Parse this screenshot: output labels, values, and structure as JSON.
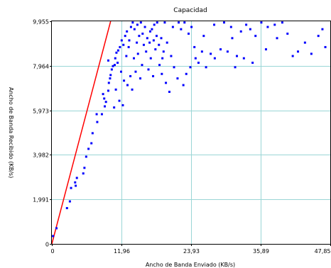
{
  "chart_data": {
    "type": "scatter",
    "title": "Capacidad",
    "xlabel": "Ancho de Banda Enviado (KB/s)",
    "ylabel": "Ancho de Banda Recibido (KB/s)",
    "xlim": [
      0,
      47.85
    ],
    "ylim": [
      0,
      9.955
    ],
    "x_ticks": [
      0,
      11.96,
      23.93,
      35.89,
      47.85
    ],
    "x_tick_labels": [
      "0",
      "11,96",
      "23,93",
      "35,89",
      "47,85"
    ],
    "y_ticks": [
      0,
      1.991,
      3.982,
      5.973,
      7.964,
      9.955
    ],
    "y_tick_labels": [
      "0",
      "1,991",
      "3,982",
      "5,973",
      "7,964",
      "9,955"
    ],
    "grid": true,
    "colors": {
      "points": "#0000ff",
      "line": "#ff0000",
      "grid": "#9ad6d6",
      "frame": "#000000"
    },
    "line": {
      "name": "",
      "x": [
        0,
        10.1
      ],
      "y": [
        0,
        9.955
      ]
    },
    "series": [
      {
        "name": "",
        "points": [
          [
            0.2,
            0.35
          ],
          [
            0.8,
            0.7
          ],
          [
            2.6,
            1.6
          ],
          [
            3.1,
            1.9
          ],
          [
            3.3,
            2.5
          ],
          [
            4.0,
            2.75
          ],
          [
            4.3,
            2.95
          ],
          [
            4.1,
            2.6
          ],
          [
            5.4,
            3.15
          ],
          [
            5.6,
            3.4
          ],
          [
            5.9,
            3.9
          ],
          [
            6.3,
            4.25
          ],
          [
            6.8,
            4.5
          ],
          [
            7.0,
            4.95
          ],
          [
            7.8,
            5.45
          ],
          [
            7.7,
            5.8
          ],
          [
            8.6,
            5.8
          ],
          [
            9.1,
            6.15
          ],
          [
            9.3,
            6.35
          ],
          [
            9.0,
            6.5
          ],
          [
            8.8,
            6.7
          ],
          [
            9.7,
            6.85
          ],
          [
            9.8,
            7.2
          ],
          [
            10.0,
            7.4
          ],
          [
            10.1,
            7.55
          ],
          [
            10.3,
            7.8
          ],
          [
            10.5,
            7.95
          ],
          [
            10.8,
            8.0
          ],
          [
            9.7,
            8.2
          ],
          [
            10.9,
            8.3
          ],
          [
            11.1,
            8.55
          ],
          [
            11.4,
            8.65
          ],
          [
            11.7,
            8.8
          ],
          [
            12.0,
            9.1
          ],
          [
            12.3,
            8.9
          ],
          [
            12.6,
            9.3
          ],
          [
            12.9,
            9.5
          ],
          [
            13.3,
            9.1
          ],
          [
            13.6,
            9.7
          ],
          [
            13.9,
            9.9
          ],
          [
            14.2,
            9.6
          ],
          [
            14.6,
            9.0
          ],
          [
            15.0,
            9.3
          ],
          [
            15.3,
            9.9
          ],
          [
            15.6,
            9.4
          ],
          [
            16.0,
            9.7
          ],
          [
            16.4,
            9.2
          ],
          [
            16.8,
            9.0
          ],
          [
            17.2,
            9.6
          ],
          [
            17.6,
            9.8
          ],
          [
            18.0,
            9.3
          ],
          [
            18.4,
            8.9
          ],
          [
            18.8,
            9.2
          ],
          [
            11.3,
            8.1
          ],
          [
            11.9,
            7.7
          ],
          [
            12.4,
            7.3
          ],
          [
            13.0,
            7.1
          ],
          [
            13.5,
            7.5
          ],
          [
            14.1,
            8.3
          ],
          [
            14.8,
            8.5
          ],
          [
            15.5,
            8.0
          ],
          [
            16.2,
            8.6
          ],
          [
            17.0,
            8.3
          ],
          [
            17.8,
            8.7
          ],
          [
            18.5,
            8.0
          ],
          [
            19.2,
            8.6
          ],
          [
            19.8,
            9.0
          ],
          [
            20.5,
            8.4
          ],
          [
            11.0,
            6.9
          ],
          [
            11.6,
            6.4
          ],
          [
            10.7,
            6.1
          ],
          [
            12.2,
            6.2
          ],
          [
            13.8,
            6.9
          ],
          [
            14.4,
            7.7
          ],
          [
            15.2,
            7.4
          ],
          [
            16.6,
            7.8
          ],
          [
            17.4,
            7.5
          ],
          [
            18.9,
            7.6
          ],
          [
            19.6,
            7.2
          ],
          [
            20.2,
            6.8
          ],
          [
            21.0,
            7.9
          ],
          [
            21.6,
            7.4
          ],
          [
            22.2,
            9.6
          ],
          [
            22.8,
            9.9
          ],
          [
            23.5,
            9.4
          ],
          [
            24.0,
            9.7
          ],
          [
            24.5,
            8.8
          ],
          [
            25.2,
            8.1
          ],
          [
            25.8,
            8.6
          ],
          [
            26.5,
            7.9
          ],
          [
            27.3,
            8.5
          ],
          [
            28.0,
            8.3
          ],
          [
            29.0,
            8.7
          ],
          [
            30.2,
            8.6
          ],
          [
            31.0,
            9.2
          ],
          [
            31.8,
            8.4
          ],
          [
            32.5,
            9.5
          ],
          [
            33.4,
            9.8
          ],
          [
            34.1,
            9.6
          ],
          [
            35.0,
            9.3
          ],
          [
            36.0,
            9.9
          ],
          [
            37.1,
            9.7
          ],
          [
            38.3,
            9.8
          ],
          [
            39.6,
            9.9
          ],
          [
            40.5,
            9.4
          ],
          [
            41.4,
            8.4
          ],
          [
            42.3,
            8.6
          ],
          [
            43.5,
            9.0
          ],
          [
            44.6,
            8.5
          ],
          [
            45.8,
            9.3
          ],
          [
            47.0,
            8.8
          ],
          [
            46.5,
            9.6
          ],
          [
            23.1,
            7.6
          ],
          [
            23.8,
            7.9
          ],
          [
            22.6,
            7.1
          ],
          [
            24.7,
            8.3
          ],
          [
            26.1,
            9.3
          ],
          [
            27.9,
            9.8
          ],
          [
            29.6,
            9.9
          ],
          [
            30.8,
            9.7
          ],
          [
            33.0,
            8.3
          ],
          [
            34.5,
            8.1
          ],
          [
            31.5,
            7.9
          ],
          [
            36.8,
            8.7
          ],
          [
            38.7,
            9.2
          ],
          [
            20.8,
            9.7
          ],
          [
            21.8,
            9.9
          ],
          [
            19.4,
            9.9
          ],
          [
            15.8,
            8.9
          ],
          [
            16.9,
            9.5
          ],
          [
            18.1,
            9.9
          ],
          [
            12.8,
            8.4
          ],
          [
            13.2,
            8.8
          ],
          [
            14.7,
            9.8
          ],
          [
            17.5,
            9.1
          ],
          [
            19.0,
            8.3
          ]
        ]
      }
    ]
  }
}
